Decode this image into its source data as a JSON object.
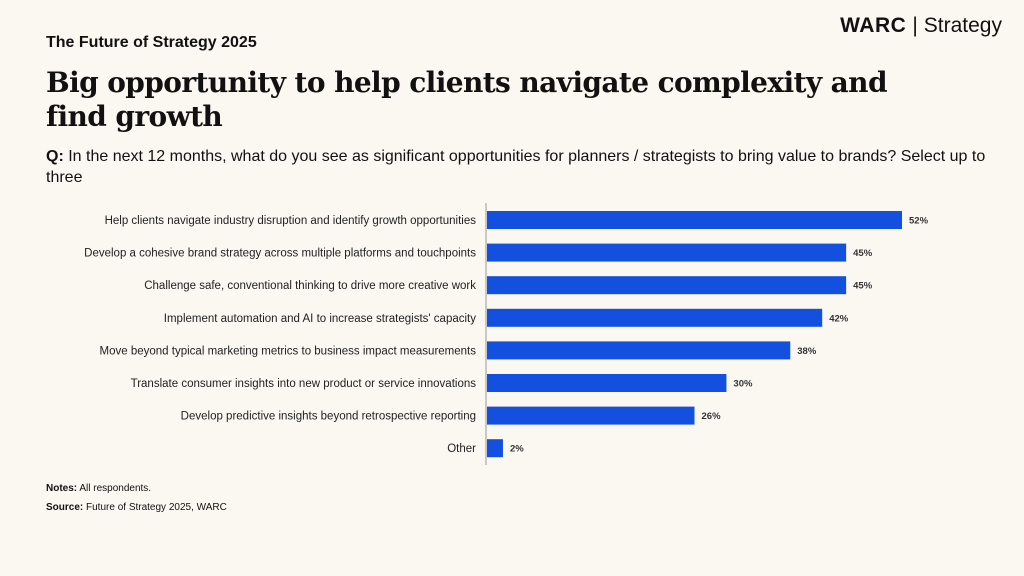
{
  "brand": {
    "name": "WARC",
    "product": "Strategy"
  },
  "kicker": "The Future of Strategy 2025",
  "title": "Big opportunity to help clients navigate complexity and find growth",
  "question": {
    "prefix": "Q:",
    "text": "In the next 12 months, what do you see as significant opportunities for planners / strategists to bring value to brands? Select up to three"
  },
  "notes": {
    "label": "Notes:",
    "text": "All respondents."
  },
  "source": {
    "label": "Source:",
    "text": "Future of Strategy 2025, WARC"
  },
  "colors": {
    "bar": "#1450e0",
    "background": "#fbf8f1"
  },
  "chart_data": {
    "type": "bar",
    "orientation": "horizontal",
    "categories": [
      "Help clients navigate industry disruption and identify growth opportunities",
      "Develop a cohesive brand strategy across multiple platforms and touchpoints",
      "Challenge safe, conventional thinking to drive more creative work",
      "Implement automation and AI to increase strategists' capacity",
      "Move beyond typical marketing metrics to business impact measurements",
      "Translate consumer insights into new product or service innovations",
      "Develop predictive insights beyond retrospective reporting",
      "Other"
    ],
    "values": [
      52,
      45,
      45,
      42,
      38,
      30,
      26,
      2
    ],
    "data_labels": [
      "52%",
      "45%",
      "45%",
      "42%",
      "38%",
      "30%",
      "26%",
      "2%"
    ],
    "unit": "%",
    "xlim": [
      0,
      52
    ],
    "grid": false
  }
}
